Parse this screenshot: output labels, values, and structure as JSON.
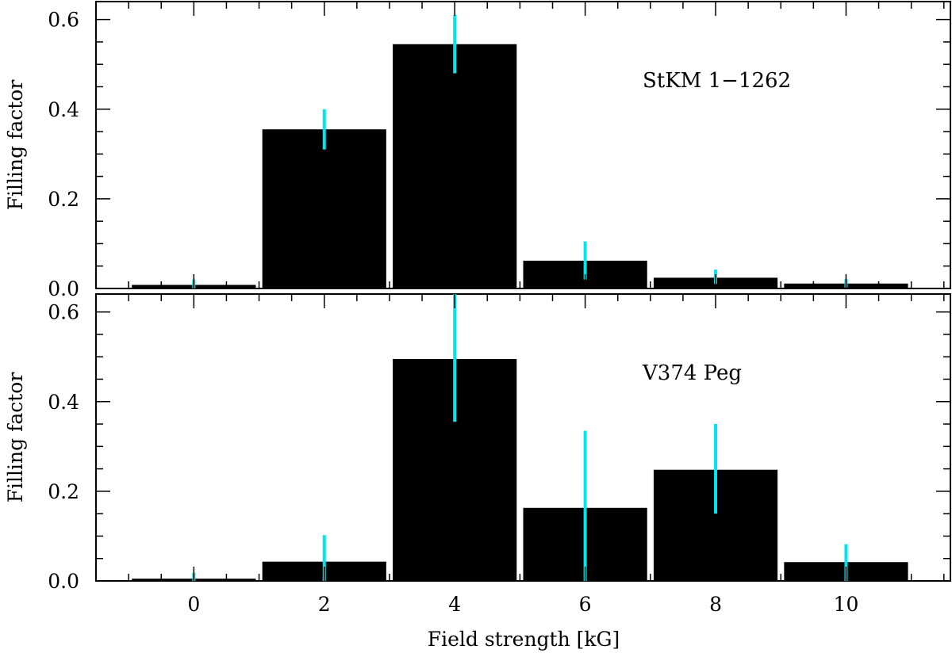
{
  "chart_data": {
    "type": "bar",
    "xlabel": "Field strength [kG]",
    "x_ticks": [
      "0",
      "2",
      "4",
      "6",
      "8",
      "10"
    ],
    "xlim": [
      -1.5,
      11.6
    ],
    "bar_width": 1.9,
    "colors": {
      "bar": "#000000",
      "error_bar": "#00e5f0"
    },
    "panels": [
      {
        "label": "StKM 1−1262",
        "ylabel": "Filling factor",
        "ylim": [
          0,
          0.64
        ],
        "y_ticks": [
          "0.0",
          "0.2",
          "0.4",
          "0.6"
        ],
        "x": [
          0,
          2,
          4,
          6,
          8,
          10
        ],
        "values": [
          0.008,
          0.355,
          0.545,
          0.062,
          0.024,
          0.011
        ],
        "err_low": [
          0.0,
          0.31,
          0.48,
          0.02,
          0.01,
          0.002
        ],
        "err_high": [
          0.02,
          0.4,
          0.61,
          0.105,
          0.042,
          0.021
        ]
      },
      {
        "label": "V374 Peg",
        "ylabel": "Filling factor",
        "ylim": [
          0,
          0.64
        ],
        "y_ticks": [
          "0.0",
          "0.2",
          "0.4",
          "0.6"
        ],
        "x": [
          0,
          2,
          4,
          6,
          8,
          10
        ],
        "values": [
          0.005,
          0.043,
          0.495,
          0.163,
          0.248,
          0.042
        ],
        "err_low": [
          0.0,
          0.0,
          0.355,
          0.0,
          0.15,
          0.0
        ],
        "err_high": [
          0.018,
          0.102,
          0.64,
          0.335,
          0.35,
          0.082
        ]
      }
    ]
  }
}
